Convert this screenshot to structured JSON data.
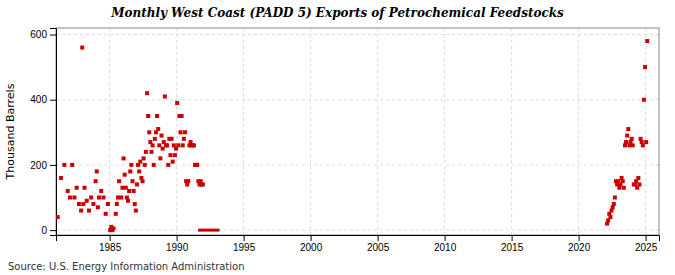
{
  "chart_data": {
    "type": "scatter",
    "title": "Monthly West Coast (PADD 5) Exports of Petrochemical Feedstocks",
    "ylabel": "Thousand Barrels",
    "source": "Source: U.S. Energy Information Administration",
    "xlim": [
      1981.0,
      2026.0
    ],
    "ylim": [
      -15,
      620
    ],
    "xticks": [
      1985,
      1990,
      1995,
      2000,
      2005,
      2010,
      2015,
      2020,
      2025
    ],
    "yticks": [
      0,
      200,
      400,
      600
    ],
    "grid": true,
    "series": [
      {
        "type": "scatter",
        "color": "#cc0000",
        "marker": "square",
        "x": [
          1981.125,
          1981.375,
          1981.625,
          1981.875,
          1982.0416666666667,
          1982.2083333333333,
          1982.375,
          1982.5416666666667,
          1982.7083333333333,
          1982.875,
          1982.9583333333333,
          1983.0416666666667,
          1983.125,
          1983.2916666666667,
          1983.4583333333333,
          1983.625,
          1983.7916666666667,
          1983.9583333333333,
          1984.0416666666667,
          1984.125,
          1984.2083333333333,
          1984.375,
          1984.5416666666667,
          1984.7083333333333,
          1984.875,
          1985.0416666666667,
          1985.125,
          1985.2083333333333,
          1985.2916666666667,
          1985.4583333333333,
          1985.5416666666667,
          1985.625,
          1985.7083333333333,
          1985.875,
          1985.9583333333333,
          1986.0416666666667,
          1986.125,
          1986.2083333333333,
          1986.2916666666667,
          1986.375,
          1986.4583333333333,
          1986.5416666666667,
          1986.625,
          1986.7083333333333,
          1986.7916666666667,
          1986.875,
          1986.9583333333333,
          1987.0416666666667,
          1987.125,
          1987.2083333333333,
          1987.2916666666667,
          1987.375,
          1987.4583333333333,
          1987.5416666666667,
          1987.625,
          1987.7083333333333,
          1987.7916666666667,
          1987.875,
          1987.9583333333333,
          1988.0416666666667,
          1988.125,
          1988.2083333333333,
          1988.2916666666667,
          1988.375,
          1988.4583333333333,
          1988.5416666666667,
          1988.625,
          1988.7083333333333,
          1988.7916666666667,
          1988.875,
          1988.9583333333333,
          1989.0416666666667,
          1989.125,
          1989.2083333333333,
          1989.2916666666667,
          1989.375,
          1989.4583333333333,
          1989.5416666666667,
          1989.625,
          1989.7083333333333,
          1989.7916666666667,
          1989.875,
          1989.9583333333333,
          1990.0416666666667,
          1990.125,
          1990.2083333333333,
          1990.2916666666667,
          1990.375,
          1990.4583333333333,
          1990.5416666666667,
          1990.625,
          1990.7083333333333,
          1990.7916666666667,
          1990.875,
          1990.9583333333333,
          1991.0416666666667,
          1991.125,
          1991.2083333333333,
          1991.2916666666667,
          1991.375,
          1991.4583333333333,
          1991.5416666666667,
          1991.625,
          1991.7083333333333,
          1991.7916666666667,
          1991.875,
          1991.9583333333333,
          2022.125,
          2022.2083333333333,
          2022.2916666666667,
          2022.375,
          2022.4583333333333,
          2022.5416666666667,
          2022.625,
          2022.7083333333333,
          2022.7916666666667,
          2022.875,
          2022.9583333333333,
          2023.0416666666667,
          2023.125,
          2023.2083333333333,
          2023.2916666666667,
          2023.375,
          2023.4583333333333,
          2023.5416666666667,
          2023.625,
          2023.7083333333333,
          2023.7916666666667,
          2023.875,
          2023.9583333333333,
          2024.0416666666667,
          2024.125,
          2024.2083333333333,
          2024.2916666666667,
          2024.375,
          2024.4583333333333,
          2024.5416666666667,
          2024.625,
          2024.7083333333333,
          2024.7916666666667,
          2024.875,
          2024.9583333333333,
          2025.0416666666667,
          2025.125
        ],
        "values": [
          40,
          160,
          200,
          120,
          100,
          200,
          100,
          130,
          80,
          60,
          560,
          80,
          130,
          90,
          60,
          100,
          80,
          150,
          180,
          70,
          100,
          120,
          100,
          50,
          80,
          0,
          10,
          0,
          5,
          50,
          80,
          100,
          150,
          100,
          130,
          220,
          170,
          130,
          100,
          90,
          120,
          180,
          200,
          150,
          120,
          80,
          60,
          140,
          200,
          180,
          210,
          160,
          150,
          220,
          200,
          240,
          420,
          350,
          300,
          270,
          240,
          260,
          200,
          280,
          300,
          350,
          310,
          260,
          220,
          290,
          250,
          270,
          410,
          260,
          260,
          200,
          280,
          230,
          280,
          210,
          260,
          230,
          250,
          390,
          260,
          350,
          300,
          350,
          260,
          280,
          300,
          150,
          140,
          150,
          260,
          270,
          260,
          260,
          260,
          200,
          200,
          200,
          150,
          140,
          150,
          140,
          140,
          20,
          30,
          50,
          40,
          60,
          70,
          80,
          100,
          150,
          140,
          150,
          130,
          140,
          160,
          150,
          130,
          260,
          270,
          290,
          310,
          260,
          270,
          280,
          260,
          140,
          140,
          150,
          130,
          160,
          140,
          280,
          270,
          260,
          400,
          500,
          270,
          580
        ]
      },
      {
        "type": "line",
        "color": "#cc0000",
        "line_style": "solid",
        "x": [
          1991.6,
          1993.2
        ],
        "values": [
          0,
          0
        ]
      }
    ]
  }
}
